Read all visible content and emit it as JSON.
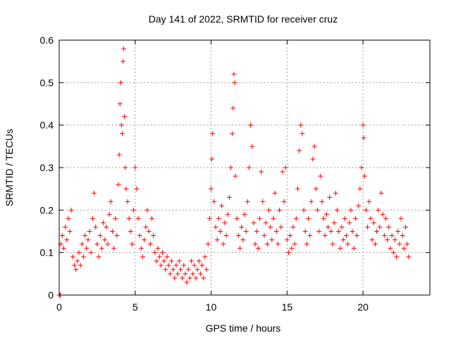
{
  "chart_data": {
    "type": "scatter",
    "title": "Day 141 of 2022, SRMTID for receiver cruz",
    "xlabel": "GPS time / hours",
    "ylabel": "SRMTID / TECUs",
    "xlim": [
      0,
      24.4
    ],
    "ylim": [
      0,
      0.6
    ],
    "xticks": [
      0,
      5,
      10,
      15,
      20
    ],
    "xtick_labels": [
      "0",
      "5",
      "10",
      "15",
      "20"
    ],
    "yticks": [
      0,
      0.1,
      0.2,
      0.3,
      0.4,
      0.5,
      0.6
    ],
    "ytick_labels": [
      "0",
      "0.1",
      "0.2",
      "0.3",
      "0.4",
      "0.5",
      "0.6"
    ],
    "grid": true,
    "marker": "+",
    "color": "#ff0000",
    "series": [
      {
        "name": "SRMTID",
        "points": [
          [
            0.0,
            0.0
          ],
          [
            0.05,
            0.0
          ],
          [
            0.08,
            0.0
          ],
          [
            0.1,
            0.12
          ],
          [
            0.2,
            0.14
          ],
          [
            0.3,
            0.11
          ],
          [
            0.4,
            0.16
          ],
          [
            0.5,
            0.13
          ],
          [
            0.6,
            0.18
          ],
          [
            0.7,
            0.15
          ],
          [
            0.8,
            0.2
          ],
          [
            0.9,
            0.09
          ],
          [
            1.0,
            0.07
          ],
          [
            1.1,
            0.06
          ],
          [
            1.2,
            0.08
          ],
          [
            1.3,
            0.1
          ],
          [
            1.4,
            0.07
          ],
          [
            1.5,
            0.12
          ],
          [
            1.6,
            0.09
          ],
          [
            1.7,
            0.14
          ],
          [
            1.8,
            0.11
          ],
          [
            1.9,
            0.13
          ],
          [
            2.0,
            0.15
          ],
          [
            2.1,
            0.1
          ],
          [
            2.2,
            0.18
          ],
          [
            2.3,
            0.24
          ],
          [
            2.4,
            0.16
          ],
          [
            2.5,
            0.12
          ],
          [
            2.6,
            0.09
          ],
          [
            2.7,
            0.14
          ],
          [
            2.8,
            0.11
          ],
          [
            2.9,
            0.17
          ],
          [
            3.0,
            0.13
          ],
          [
            3.1,
            0.16
          ],
          [
            3.2,
            0.12
          ],
          [
            3.3,
            0.19
          ],
          [
            3.4,
            0.22
          ],
          [
            3.5,
            0.15
          ],
          [
            3.6,
            0.11
          ],
          [
            3.7,
            0.18
          ],
          [
            3.8,
            0.14
          ],
          [
            3.9,
            0.26
          ],
          [
            3.95,
            0.33
          ],
          [
            4.0,
            0.45
          ],
          [
            4.05,
            0.5
          ],
          [
            4.1,
            0.4
          ],
          [
            4.15,
            0.38
          ],
          [
            4.2,
            0.55
          ],
          [
            4.25,
            0.58
          ],
          [
            4.3,
            0.42
          ],
          [
            4.35,
            0.3
          ],
          [
            4.4,
            0.25
          ],
          [
            4.5,
            0.22
          ],
          [
            4.6,
            0.18
          ],
          [
            4.7,
            0.15
          ],
          [
            4.8,
            0.12
          ],
          [
            4.9,
            0.2
          ],
          [
            5.0,
            0.3
          ],
          [
            5.1,
            0.25
          ],
          [
            5.2,
            0.18
          ],
          [
            5.3,
            0.14
          ],
          [
            5.4,
            0.11
          ],
          [
            5.5,
            0.09
          ],
          [
            5.6,
            0.13
          ],
          [
            5.7,
            0.16
          ],
          [
            5.8,
            0.2
          ],
          [
            5.9,
            0.15
          ],
          [
            6.0,
            0.12
          ],
          [
            6.1,
            0.18
          ],
          [
            6.2,
            0.14
          ],
          [
            6.3,
            0.1
          ],
          [
            6.4,
            0.08
          ],
          [
            6.5,
            0.11
          ],
          [
            6.6,
            0.09
          ],
          [
            6.7,
            0.07
          ],
          [
            6.8,
            0.1
          ],
          [
            6.9,
            0.08
          ],
          [
            7.0,
            0.06
          ],
          [
            7.1,
            0.09
          ],
          [
            7.2,
            0.07
          ],
          [
            7.3,
            0.05
          ],
          [
            7.4,
            0.08
          ],
          [
            7.5,
            0.06
          ],
          [
            7.6,
            0.04
          ],
          [
            7.7,
            0.07
          ],
          [
            7.8,
            0.05
          ],
          [
            7.9,
            0.08
          ],
          [
            8.0,
            0.06
          ],
          [
            8.1,
            0.04
          ],
          [
            8.2,
            0.07
          ],
          [
            8.3,
            0.05
          ],
          [
            8.4,
            0.03
          ],
          [
            8.5,
            0.06
          ],
          [
            8.6,
            0.04
          ],
          [
            8.7,
            0.08
          ],
          [
            8.8,
            0.05
          ],
          [
            8.9,
            0.07
          ],
          [
            9.0,
            0.04
          ],
          [
            9.1,
            0.06
          ],
          [
            9.2,
            0.08
          ],
          [
            9.3,
            0.05
          ],
          [
            9.4,
            0.07
          ],
          [
            9.5,
            0.04
          ],
          [
            9.6,
            0.09
          ],
          [
            9.7,
            0.06
          ],
          [
            9.8,
            0.12
          ],
          [
            9.9,
            0.18
          ],
          [
            10.0,
            0.25
          ],
          [
            10.05,
            0.32
          ],
          [
            10.1,
            0.38
          ],
          [
            10.2,
            0.22
          ],
          [
            10.3,
            0.16
          ],
          [
            10.4,
            0.13
          ],
          [
            10.5,
            0.18
          ],
          [
            10.6,
            0.15
          ],
          [
            10.7,
            0.21
          ],
          [
            10.8,
            0.12
          ],
          [
            10.9,
            0.17
          ],
          [
            11.0,
            0.14
          ],
          [
            11.1,
            0.19
          ],
          [
            11.2,
            0.23
          ],
          [
            11.3,
            0.3
          ],
          [
            11.4,
            0.38
          ],
          [
            11.45,
            0.44
          ],
          [
            11.5,
            0.52
          ],
          [
            11.55,
            0.5
          ],
          [
            11.6,
            0.28
          ],
          [
            11.7,
            0.18
          ],
          [
            11.8,
            0.14
          ],
          [
            11.9,
            0.11
          ],
          [
            12.0,
            0.16
          ],
          [
            12.1,
            0.13
          ],
          [
            12.2,
            0.19
          ],
          [
            12.3,
            0.15
          ],
          [
            12.4,
            0.22
          ],
          [
            12.5,
            0.3
          ],
          [
            12.6,
            0.4
          ],
          [
            12.7,
            0.35
          ],
          [
            12.8,
            0.17
          ],
          [
            12.9,
            0.12
          ],
          [
            13.0,
            0.15
          ],
          [
            13.1,
            0.11
          ],
          [
            13.2,
            0.18
          ],
          [
            13.3,
            0.29
          ],
          [
            13.4,
            0.22
          ],
          [
            13.5,
            0.14
          ],
          [
            13.6,
            0.17
          ],
          [
            13.7,
            0.12
          ],
          [
            13.8,
            0.2
          ],
          [
            13.9,
            0.16
          ],
          [
            14.0,
            0.13
          ],
          [
            14.1,
            0.18
          ],
          [
            14.2,
            0.24
          ],
          [
            14.3,
            0.15
          ],
          [
            14.4,
            0.12
          ],
          [
            14.5,
            0.2
          ],
          [
            14.6,
            0.16
          ],
          [
            14.7,
            0.29
          ],
          [
            14.8,
            0.22
          ],
          [
            14.9,
            0.3
          ],
          [
            15.0,
            0.13
          ],
          [
            15.1,
            0.1
          ],
          [
            15.2,
            0.14
          ],
          [
            15.3,
            0.11
          ],
          [
            15.4,
            0.16
          ],
          [
            15.5,
            0.12
          ],
          [
            15.6,
            0.18
          ],
          [
            15.7,
            0.25
          ],
          [
            15.8,
            0.34
          ],
          [
            15.9,
            0.4
          ],
          [
            16.0,
            0.38
          ],
          [
            16.1,
            0.2
          ],
          [
            16.2,
            0.15
          ],
          [
            16.3,
            0.12
          ],
          [
            16.4,
            0.18
          ],
          [
            16.5,
            0.14
          ],
          [
            16.6,
            0.22
          ],
          [
            16.7,
            0.32
          ],
          [
            16.8,
            0.35
          ],
          [
            16.9,
            0.25
          ],
          [
            17.0,
            0.2
          ],
          [
            17.1,
            0.15
          ],
          [
            17.2,
            0.28
          ],
          [
            17.3,
            0.22
          ],
          [
            17.4,
            0.18
          ],
          [
            17.5,
            0.14
          ],
          [
            17.6,
            0.19
          ],
          [
            17.7,
            0.16
          ],
          [
            17.8,
            0.23
          ],
          [
            17.9,
            0.15
          ],
          [
            18.0,
            0.12
          ],
          [
            18.1,
            0.17
          ],
          [
            18.2,
            0.24
          ],
          [
            18.3,
            0.2
          ],
          [
            18.4,
            0.15
          ],
          [
            18.5,
            0.11
          ],
          [
            18.6,
            0.16
          ],
          [
            18.7,
            0.13
          ],
          [
            18.8,
            0.18
          ],
          [
            18.9,
            0.14
          ],
          [
            19.0,
            0.12
          ],
          [
            19.1,
            0.17
          ],
          [
            19.2,
            0.2
          ],
          [
            19.3,
            0.15
          ],
          [
            19.4,
            0.11
          ],
          [
            19.5,
            0.18
          ],
          [
            19.6,
            0.14
          ],
          [
            19.7,
            0.21
          ],
          [
            19.8,
            0.25
          ],
          [
            19.9,
            0.3
          ],
          [
            20.0,
            0.4
          ],
          [
            20.05,
            0.37
          ],
          [
            20.1,
            0.28
          ],
          [
            20.2,
            0.2
          ],
          [
            20.3,
            0.16
          ],
          [
            20.4,
            0.22
          ],
          [
            20.5,
            0.18
          ],
          [
            20.6,
            0.13
          ],
          [
            20.7,
            0.17
          ],
          [
            20.8,
            0.12
          ],
          [
            20.9,
            0.15
          ],
          [
            21.0,
            0.2
          ],
          [
            21.1,
            0.16
          ],
          [
            21.2,
            0.24
          ],
          [
            21.3,
            0.19
          ],
          [
            21.4,
            0.14
          ],
          [
            21.5,
            0.18
          ],
          [
            21.6,
            0.13
          ],
          [
            21.7,
            0.16
          ],
          [
            21.8,
            0.11
          ],
          [
            21.9,
            0.14
          ],
          [
            22.0,
            0.1
          ],
          [
            22.1,
            0.13
          ],
          [
            22.2,
            0.09
          ],
          [
            22.3,
            0.15
          ],
          [
            22.4,
            0.12
          ],
          [
            22.5,
            0.18
          ],
          [
            22.6,
            0.14
          ],
          [
            22.7,
            0.11
          ],
          [
            22.8,
            0.16
          ],
          [
            22.9,
            0.12
          ],
          [
            23.0,
            0.09
          ]
        ]
      }
    ]
  }
}
